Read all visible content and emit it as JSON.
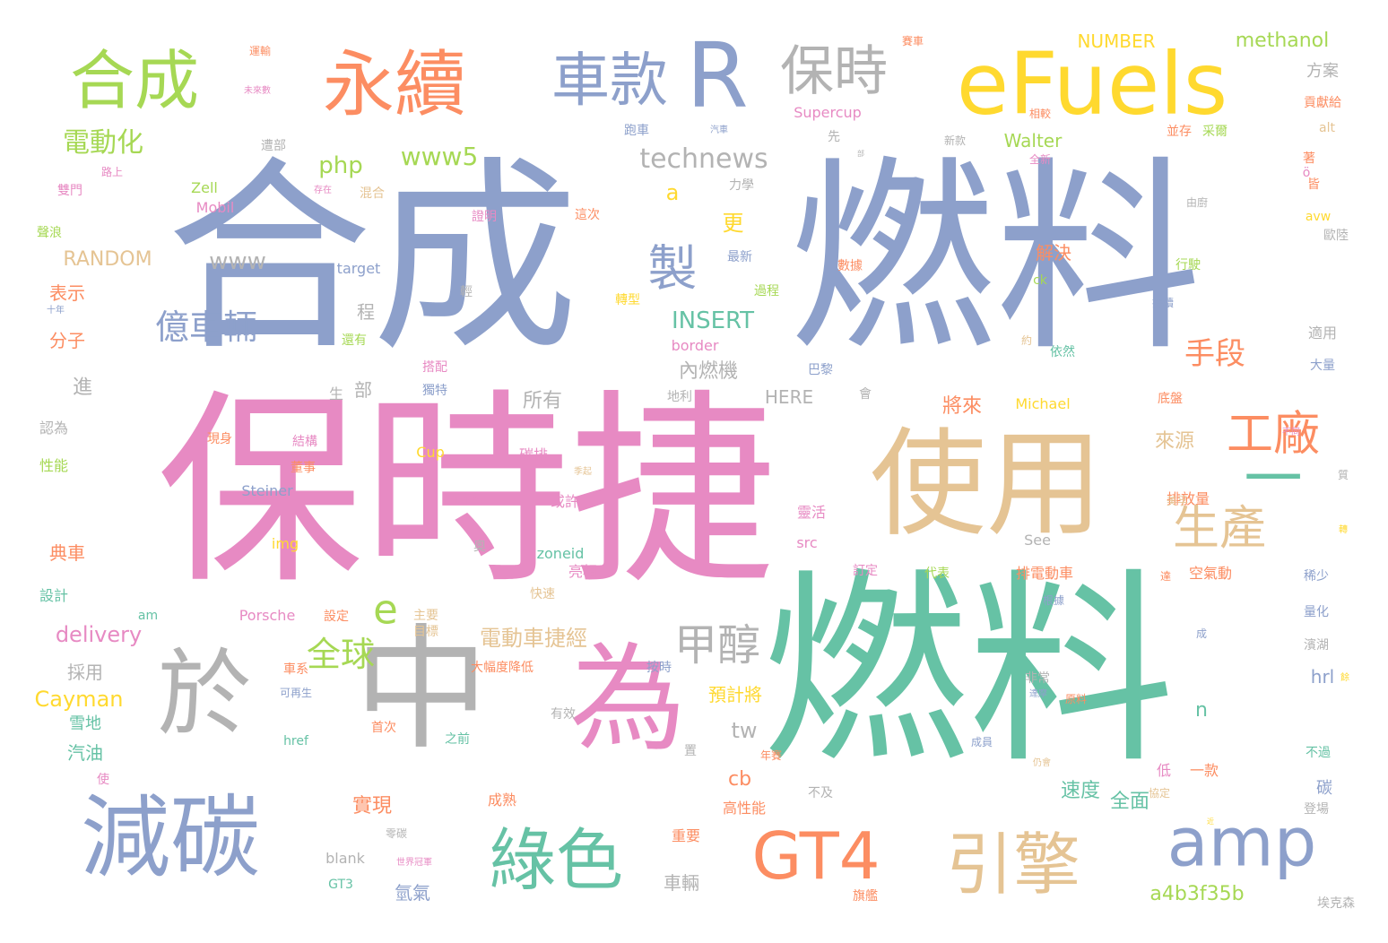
{
  "palette": {
    "blue": "#8da0cb",
    "teal": "#66c2a5",
    "pink": "#e78ac3",
    "orange": "#fc8d62",
    "yellow": "#ffd92f",
    "tan": "#e5c494",
    "green": "#a6d854",
    "gray": "#b3b3b3",
    "background": "#ffffff"
  },
  "words": [
    {
      "text": "合成",
      "color": "blue"
    },
    {
      "text": "燃料",
      "color": "blue"
    },
    {
      "text": "保時捷",
      "color": "pink"
    },
    {
      "text": "燃料",
      "color": "teal"
    },
    {
      "text": "使用",
      "color": "tan"
    },
    {
      "text": "中",
      "color": "gray"
    },
    {
      "text": "為",
      "color": "pink"
    },
    {
      "text": "於",
      "color": "gray"
    },
    {
      "text": "減碳",
      "color": "blue"
    },
    {
      "text": "eFuels",
      "color": "yellow"
    },
    {
      "text": "R",
      "color": "blue"
    },
    {
      "text": "永續",
      "color": "orange"
    },
    {
      "text": "合成",
      "color": "green"
    },
    {
      "text": "車款",
      "color": "blue"
    },
    {
      "text": "保時",
      "color": "gray"
    },
    {
      "text": "綠色",
      "color": "teal"
    },
    {
      "text": "GT4",
      "color": "orange"
    },
    {
      "text": "引擎",
      "color": "tan"
    },
    {
      "text": "amp",
      "color": "blue"
    },
    {
      "text": "一",
      "color": "teal"
    },
    {
      "text": "工廠",
      "color": "orange"
    },
    {
      "text": "生產",
      "color": "tan"
    },
    {
      "text": "製",
      "color": "blue"
    },
    {
      "text": "甲醇",
      "color": "gray"
    },
    {
      "text": "e",
      "color": "green"
    },
    {
      "text": "全球",
      "color": "green"
    },
    {
      "text": "億車輛",
      "color": "blue"
    },
    {
      "text": "電動化",
      "color": "green"
    },
    {
      "text": "technews",
      "color": "gray"
    },
    {
      "text": "php",
      "color": "green"
    },
    {
      "text": "www5",
      "color": "green"
    },
    {
      "text": "www",
      "color": "gray"
    },
    {
      "text": "a",
      "color": "yellow"
    },
    {
      "text": "更",
      "color": "yellow"
    },
    {
      "text": "INSERT",
      "color": "teal"
    },
    {
      "text": "手段",
      "color": "orange"
    },
    {
      "text": "解決",
      "color": "orange"
    },
    {
      "text": "NUMBER",
      "color": "yellow"
    },
    {
      "text": "methanol",
      "color": "green"
    },
    {
      "text": "方案",
      "color": "gray"
    },
    {
      "text": "Walter",
      "color": "green"
    },
    {
      "text": "Supercup",
      "color": "pink"
    },
    {
      "text": "電動車捷經",
      "color": "tan"
    },
    {
      "text": "delivery",
      "color": "pink"
    },
    {
      "text": "Cayman",
      "color": "yellow"
    },
    {
      "text": "a4b3f35b",
      "color": "green"
    },
    {
      "text": "tw",
      "color": "gray"
    },
    {
      "text": "RANDOM",
      "color": "tan"
    },
    {
      "text": "將來",
      "color": "orange"
    },
    {
      "text": "來源",
      "color": "tan"
    },
    {
      "text": "內燃機",
      "color": "gray"
    },
    {
      "text": "HERE",
      "color": "gray"
    },
    {
      "text": "所有",
      "color": "gray"
    },
    {
      "text": "表示",
      "color": "orange"
    },
    {
      "text": "分子",
      "color": "orange"
    },
    {
      "text": "採用",
      "color": "gray"
    },
    {
      "text": "汽油",
      "color": "teal"
    },
    {
      "text": "雪地",
      "color": "teal"
    },
    {
      "text": "典車",
      "color": "orange"
    },
    {
      "text": "設計",
      "color": "teal"
    },
    {
      "text": "性能",
      "color": "green"
    },
    {
      "text": "認為",
      "color": "gray"
    },
    {
      "text": "進",
      "color": "gray"
    },
    {
      "text": "程",
      "color": "gray"
    },
    {
      "text": "部",
      "color": "gray"
    },
    {
      "text": "生",
      "color": "gray"
    },
    {
      "text": "預計將",
      "color": "yellow"
    },
    {
      "text": "實現",
      "color": "orange"
    },
    {
      "text": "速度",
      "color": "teal"
    },
    {
      "text": "全面",
      "color": "teal"
    },
    {
      "text": "cb",
      "color": "orange"
    },
    {
      "text": "n",
      "color": "teal"
    },
    {
      "text": "hrl",
      "color": "blue"
    },
    {
      "text": "碳",
      "color": "blue"
    },
    {
      "text": "車輛",
      "color": "gray"
    },
    {
      "text": "氫氣",
      "color": "blue"
    },
    {
      "text": "高性能",
      "color": "orange"
    },
    {
      "text": "重要",
      "color": "orange"
    },
    {
      "text": "成熟",
      "color": "orange"
    },
    {
      "text": "低",
      "color": "pink"
    },
    {
      "text": "一款",
      "color": "orange"
    },
    {
      "text": "排電動車",
      "color": "orange"
    },
    {
      "text": "空氣動",
      "color": "orange"
    },
    {
      "text": "排放量",
      "color": "orange"
    },
    {
      "text": "See",
      "color": "gray"
    },
    {
      "text": "zoneid",
      "color": "teal"
    },
    {
      "text": "亮相",
      "color": "pink"
    },
    {
      "text": "或許",
      "color": "pink"
    },
    {
      "text": "碳排",
      "color": "pink"
    },
    {
      "text": "Cup",
      "color": "yellow"
    },
    {
      "text": "Michael",
      "color": "yellow"
    },
    {
      "text": "靈活",
      "color": "pink"
    },
    {
      "text": "src",
      "color": "pink"
    },
    {
      "text": "Porsche",
      "color": "pink"
    },
    {
      "text": "Steiner",
      "color": "blue"
    },
    {
      "text": "img",
      "color": "yellow"
    },
    {
      "text": "Zell",
      "color": "green"
    },
    {
      "text": "Mobil",
      "color": "pink"
    },
    {
      "text": "target",
      "color": "blue"
    },
    {
      "text": "border",
      "color": "pink"
    },
    {
      "text": "ck",
      "color": "green"
    },
    {
      "text": "alt",
      "color": "tan"
    },
    {
      "text": "avw",
      "color": "yellow"
    },
    {
      "text": "blank",
      "color": "gray"
    },
    {
      "text": "GT3",
      "color": "teal"
    },
    {
      "text": "href",
      "color": "teal"
    },
    {
      "text": "am",
      "color": "teal"
    },
    {
      "text": "ö",
      "color": "pink"
    },
    {
      "text": "依然",
      "color": "teal"
    },
    {
      "text": "底盤",
      "color": "orange"
    },
    {
      "text": "適用",
      "color": "gray"
    },
    {
      "text": "大量",
      "color": "blue"
    },
    {
      "text": "稀少",
      "color": "blue"
    },
    {
      "text": "量化",
      "color": "blue"
    },
    {
      "text": "濱湖",
      "color": "gray"
    },
    {
      "text": "不過",
      "color": "teal"
    },
    {
      "text": "登場",
      "color": "gray"
    },
    {
      "text": "埃克森",
      "color": "gray"
    },
    {
      "text": "歐陸",
      "color": "gray"
    },
    {
      "text": "皆",
      "color": "orange"
    },
    {
      "text": "著",
      "color": "orange"
    },
    {
      "text": "由廚",
      "color": "gray"
    },
    {
      "text": "貢獻給",
      "color": "orange"
    },
    {
      "text": "並存",
      "color": "orange"
    },
    {
      "text": "采爾",
      "color": "green"
    },
    {
      "text": "全新",
      "color": "pink"
    },
    {
      "text": "新款",
      "color": "gray"
    },
    {
      "text": "相較",
      "color": "orange"
    },
    {
      "text": "賽車",
      "color": "orange"
    },
    {
      "text": "運輸",
      "color": "orange"
    },
    {
      "text": "未來數",
      "color": "pink"
    },
    {
      "text": "遭部",
      "color": "gray"
    },
    {
      "text": "路上",
      "color": "pink"
    },
    {
      "text": "雙門",
      "color": "pink"
    },
    {
      "text": "存在",
      "color": "pink"
    },
    {
      "text": "混合",
      "color": "tan"
    },
    {
      "text": "聲浪",
      "color": "green"
    },
    {
      "text": "十年",
      "color": "blue"
    },
    {
      "text": "還有",
      "color": "green"
    },
    {
      "text": "跑車",
      "color": "blue"
    },
    {
      "text": "汽車",
      "color": "blue"
    },
    {
      "text": "先",
      "color": "gray"
    },
    {
      "text": "部",
      "color": "gray"
    },
    {
      "text": "力學",
      "color": "gray"
    },
    {
      "text": "證明",
      "color": "pink"
    },
    {
      "text": "這次",
      "color": "orange"
    },
    {
      "text": "最新",
      "color": "blue"
    },
    {
      "text": "過程",
      "color": "green"
    },
    {
      "text": "轉型",
      "color": "yellow"
    },
    {
      "text": "數據",
      "color": "orange"
    },
    {
      "text": "行駛",
      "color": "green"
    },
    {
      "text": "持續",
      "color": "blue"
    },
    {
      "text": "輕",
      "color": "gray"
    },
    {
      "text": "約",
      "color": "tan"
    },
    {
      "text": "巴黎",
      "color": "blue"
    },
    {
      "text": "會",
      "color": "gray"
    },
    {
      "text": "地利",
      "color": "gray"
    },
    {
      "text": "搭配",
      "color": "pink"
    },
    {
      "text": "獨特",
      "color": "blue"
    },
    {
      "text": "結構",
      "color": "pink"
    },
    {
      "text": "現身",
      "color": "orange"
    },
    {
      "text": "董事",
      "color": "orange"
    },
    {
      "text": "並不夠",
      "color": "pink"
    },
    {
      "text": "奧",
      "color": "gray"
    },
    {
      "text": "季起",
      "color": "tan"
    },
    {
      "text": "不同",
      "color": "pink"
    },
    {
      "text": "質",
      "color": "gray"
    },
    {
      "text": "美孚",
      "color": "tan"
    },
    {
      "text": "轉",
      "color": "yellow"
    },
    {
      "text": "訂定",
      "color": "pink"
    },
    {
      "text": "代表",
      "color": "green"
    },
    {
      "text": "根據",
      "color": "blue"
    },
    {
      "text": "達",
      "color": "orange"
    },
    {
      "text": "設定",
      "color": "orange"
    },
    {
      "text": "主要",
      "color": "tan"
    },
    {
      "text": "目標",
      "color": "tan"
    },
    {
      "text": "快速",
      "color": "tan"
    },
    {
      "text": "大幅度降低",
      "color": "orange"
    },
    {
      "text": "按時",
      "color": "blue"
    },
    {
      "text": "成",
      "color": "blue"
    },
    {
      "text": "餘",
      "color": "yellow"
    },
    {
      "text": "達摩",
      "color": "blue"
    },
    {
      "text": "原料",
      "color": "orange"
    },
    {
      "text": "非常",
      "color": "gray"
    },
    {
      "text": "車系",
      "color": "orange"
    },
    {
      "text": "可再生",
      "color": "blue"
    },
    {
      "text": "有效",
      "color": "gray"
    },
    {
      "text": "首次",
      "color": "orange"
    },
    {
      "text": "之前",
      "color": "teal"
    },
    {
      "text": "置",
      "color": "gray"
    },
    {
      "text": "年賽",
      "color": "orange"
    },
    {
      "text": "成員",
      "color": "blue"
    },
    {
      "text": "仍會",
      "color": "tan"
    },
    {
      "text": "協定",
      "color": "tan"
    },
    {
      "text": "使",
      "color": "pink"
    },
    {
      "text": "不及",
      "color": "gray"
    },
    {
      "text": "零碳",
      "color": "gray"
    },
    {
      "text": "世界冠軍",
      "color": "pink"
    },
    {
      "text": "近",
      "color": "yellow"
    },
    {
      "text": "旗艦",
      "color": "orange"
    }
  ]
}
